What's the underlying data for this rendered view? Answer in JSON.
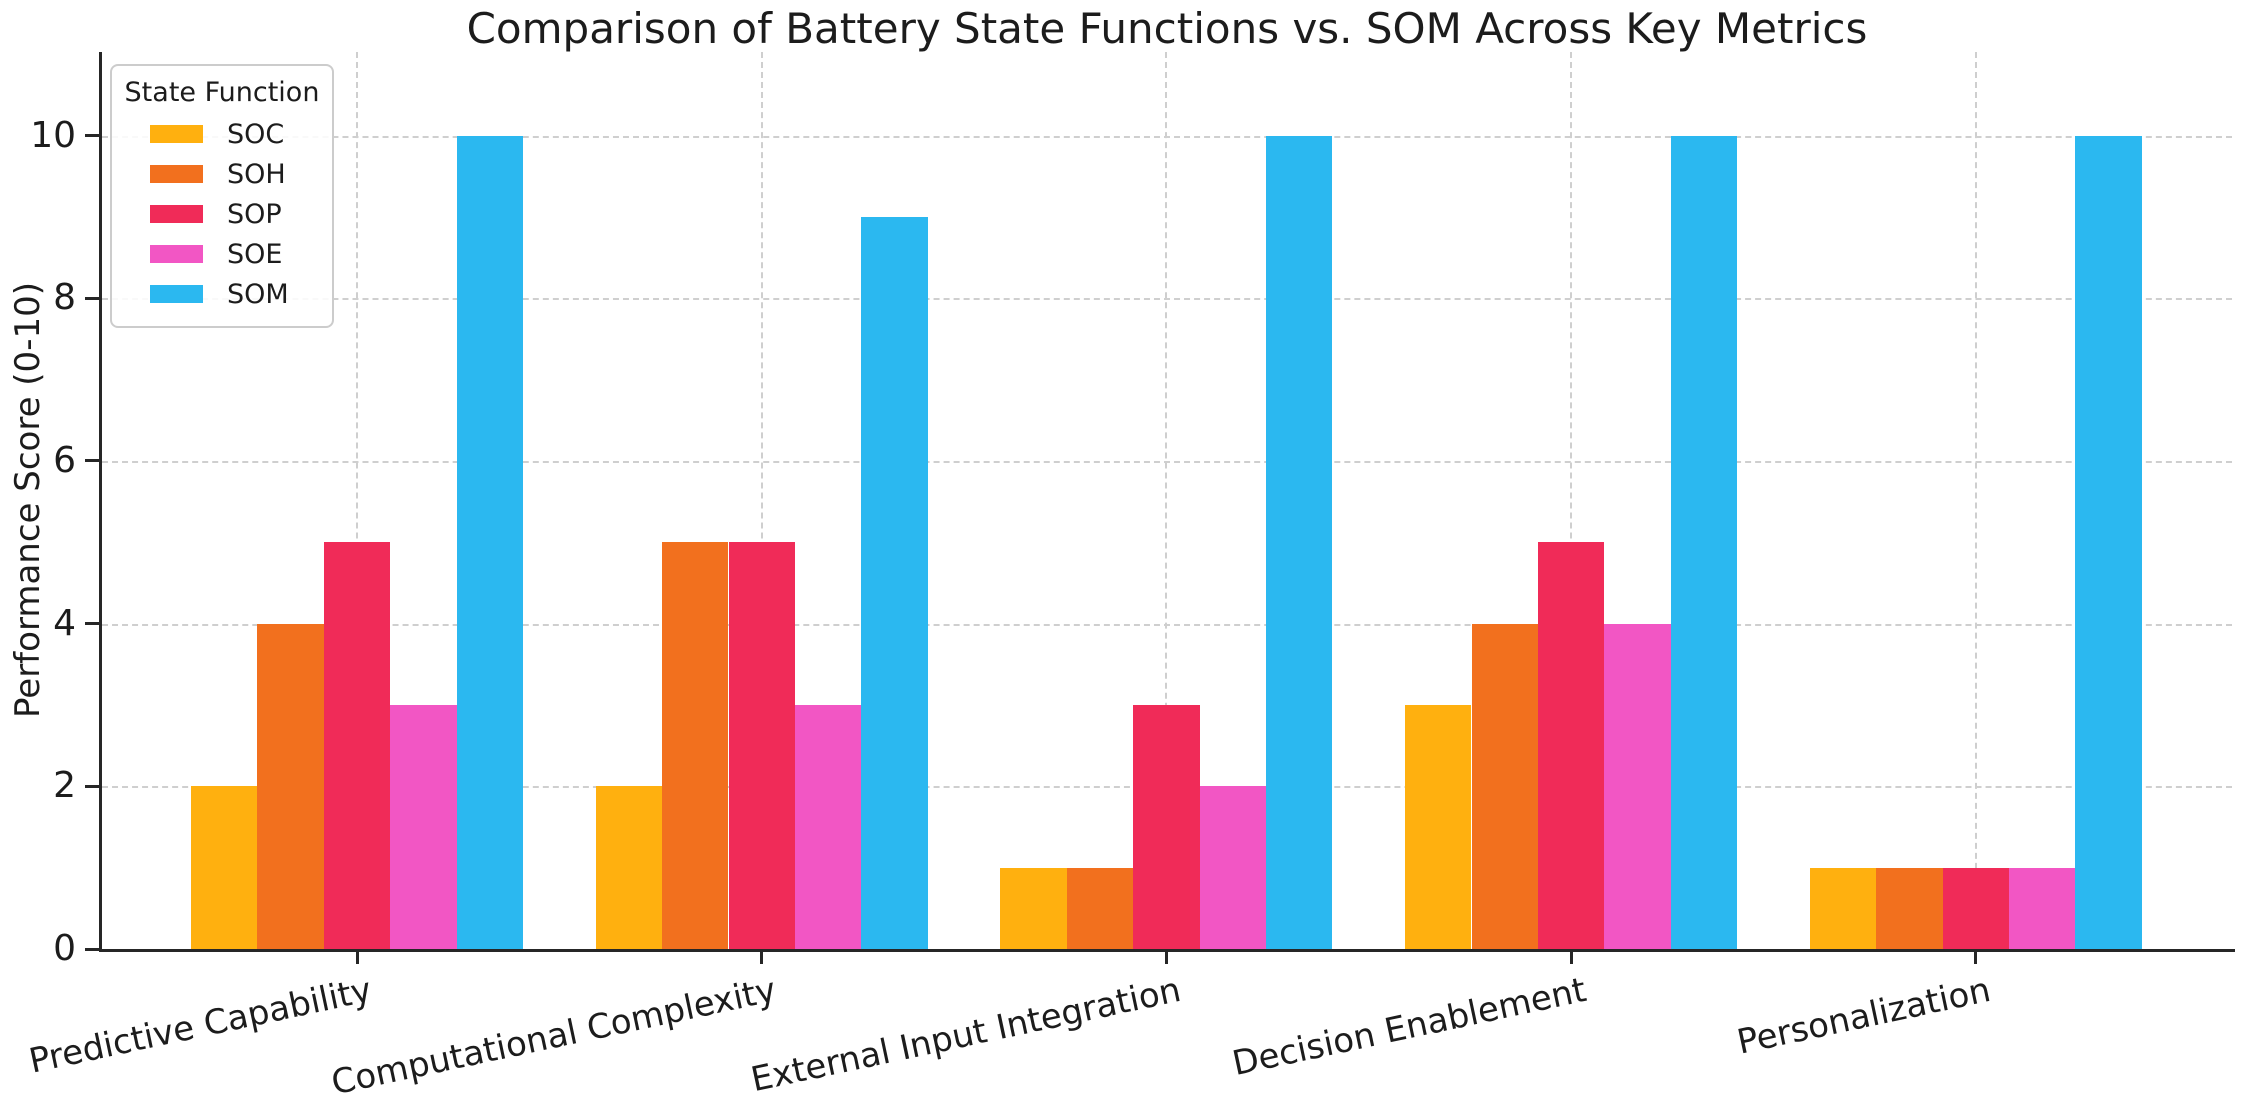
{
  "chart_data": {
    "type": "bar",
    "title": "Comparison of Battery State Functions vs. SOM Across Key Metrics",
    "ylabel": "Performance Score (0-10)",
    "xlabel": "",
    "legend_title": "State Function",
    "legend_position": "upper left",
    "grid": true,
    "ylim": [
      0,
      11
    ],
    "yticks": [
      0,
      2,
      4,
      6,
      8,
      10
    ],
    "categories": [
      "Predictive Capability",
      "Computational Complexity",
      "External Input Integration",
      "Decision Enablement",
      "Personalization"
    ],
    "series": [
      {
        "name": "SOC",
        "color": "#FFB00F",
        "values": [
          2,
          2,
          1,
          3,
          1
        ]
      },
      {
        "name": "SOH",
        "color": "#F2701E",
        "values": [
          4,
          5,
          1,
          4,
          1
        ]
      },
      {
        "name": "SOP",
        "color": "#F02B58",
        "values": [
          5,
          5,
          3,
          5,
          1
        ]
      },
      {
        "name": "SOE",
        "color": "#F256C4",
        "values": [
          3,
          3,
          2,
          4,
          1
        ]
      },
      {
        "name": "SOM",
        "color": "#2BB8F0",
        "values": [
          10,
          9,
          10,
          10,
          10
        ]
      }
    ],
    "colors": {
      "grid": "#cfcfcf",
      "spine": "#262626",
      "text": "#1c1c1c",
      "background": "#ffffff"
    }
  }
}
